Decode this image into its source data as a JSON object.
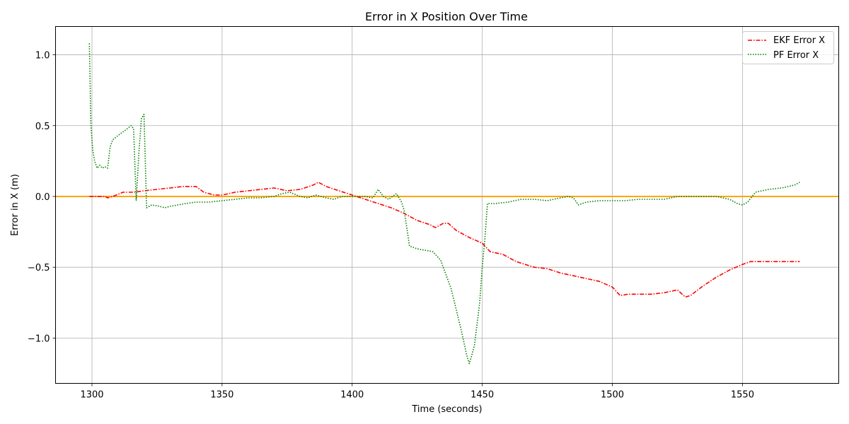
{
  "chart_data": {
    "type": "line",
    "title": "Error in X Position Over Time",
    "xlabel": "Time (seconds)",
    "ylabel": "Error in X (m)",
    "xlim": [
      1286,
      1587
    ],
    "ylim": [
      -1.32,
      1.2
    ],
    "xticks": [
      1300,
      1350,
      1400,
      1450,
      1500,
      1550
    ],
    "xtick_labels": [
      "1300",
      "1350",
      "1400",
      "1450",
      "1500",
      "1550"
    ],
    "yticks": [
      -1.0,
      -0.5,
      0.0,
      0.5,
      1.0
    ],
    "ytick_labels": [
      "−1.0",
      "−0.5",
      "0.0",
      "0.5",
      "1.0"
    ],
    "grid": true,
    "legend_position": "top-right",
    "reference_line": {
      "y": 0.0,
      "color": "#ffa500"
    },
    "series": [
      {
        "name": "EKF Error X",
        "color": "#ff0000",
        "style": "dashdot",
        "x": [
          1299,
          1302,
          1305,
          1306,
          1308,
          1312,
          1316,
          1320,
          1325,
          1330,
          1335,
          1340,
          1343,
          1347,
          1350,
          1355,
          1360,
          1365,
          1370,
          1375,
          1380,
          1385,
          1387,
          1390,
          1395,
          1400,
          1405,
          1410,
          1415,
          1420,
          1425,
          1430,
          1432,
          1435,
          1437,
          1440,
          1445,
          1450,
          1453,
          1458,
          1463,
          1470,
          1475,
          1480,
          1485,
          1490,
          1495,
          1500,
          1503,
          1506,
          1510,
          1515,
          1520,
          1525,
          1528,
          1530,
          1535,
          1540,
          1545,
          1550,
          1553,
          1560,
          1565,
          1572
        ],
        "y": [
          0.0,
          0.0,
          0.0,
          -0.01,
          0.0,
          0.03,
          0.03,
          0.04,
          0.05,
          0.06,
          0.07,
          0.07,
          0.03,
          0.01,
          0.01,
          0.03,
          0.04,
          0.05,
          0.06,
          0.04,
          0.05,
          0.08,
          0.1,
          0.07,
          0.04,
          0.01,
          -0.02,
          -0.05,
          -0.08,
          -0.12,
          -0.17,
          -0.2,
          -0.22,
          -0.19,
          -0.19,
          -0.24,
          -0.29,
          -0.33,
          -0.39,
          -0.41,
          -0.46,
          -0.5,
          -0.51,
          -0.54,
          -0.56,
          -0.58,
          -0.6,
          -0.64,
          -0.7,
          -0.69,
          -0.69,
          -0.69,
          -0.68,
          -0.66,
          -0.71,
          -0.7,
          -0.63,
          -0.57,
          -0.52,
          -0.48,
          -0.46,
          -0.46,
          -0.46,
          -0.46
        ]
      },
      {
        "name": "PF Error X",
        "color": "#008000",
        "style": "dotted",
        "x": [
          1299,
          1299.6,
          1300.3,
          1301,
          1302,
          1303,
          1304,
          1305,
          1306,
          1307,
          1308,
          1310,
          1313,
          1315,
          1316,
          1317,
          1318,
          1319,
          1320,
          1321,
          1323,
          1326,
          1328,
          1330,
          1333,
          1336,
          1340,
          1345,
          1350,
          1355,
          1360,
          1365,
          1370,
          1373,
          1376,
          1380,
          1383,
          1386,
          1390,
          1393,
          1396,
          1400,
          1405,
          1408,
          1410,
          1412,
          1414,
          1417,
          1419,
          1420,
          1421,
          1422,
          1425,
          1428,
          1431,
          1434,
          1436,
          1438,
          1440,
          1442,
          1444,
          1445,
          1446,
          1447,
          1448,
          1449,
          1450,
          1451,
          1452,
          1455,
          1460,
          1465,
          1470,
          1475,
          1480,
          1483,
          1485,
          1487,
          1490,
          1495,
          1500,
          1505,
          1510,
          1515,
          1520,
          1525,
          1530,
          1535,
          1540,
          1545,
          1548,
          1550,
          1552,
          1555,
          1560,
          1565,
          1570,
          1572
        ],
        "y": [
          1.08,
          0.5,
          0.33,
          0.25,
          0.2,
          0.22,
          0.2,
          0.21,
          0.2,
          0.35,
          0.4,
          0.43,
          0.47,
          0.5,
          0.48,
          -0.03,
          0.3,
          0.55,
          0.58,
          -0.08,
          -0.06,
          -0.07,
          -0.08,
          -0.07,
          -0.06,
          -0.05,
          -0.04,
          -0.04,
          -0.03,
          -0.02,
          -0.01,
          -0.01,
          0.0,
          0.02,
          0.03,
          0.0,
          -0.01,
          0.01,
          -0.01,
          -0.02,
          0.0,
          0.0,
          0.0,
          -0.01,
          0.05,
          0.0,
          -0.02,
          0.02,
          -0.04,
          -0.1,
          -0.22,
          -0.35,
          -0.37,
          -0.38,
          -0.39,
          -0.45,
          -0.55,
          -0.65,
          -0.8,
          -0.95,
          -1.12,
          -1.18,
          -1.12,
          -1.05,
          -0.9,
          -0.75,
          -0.5,
          -0.3,
          -0.05,
          -0.05,
          -0.04,
          -0.02,
          -0.02,
          -0.03,
          -0.01,
          0.0,
          -0.01,
          -0.06,
          -0.04,
          -0.03,
          -0.03,
          -0.03,
          -0.02,
          -0.02,
          -0.02,
          0.0,
          0.0,
          0.0,
          0.0,
          -0.02,
          -0.05,
          -0.06,
          -0.04,
          0.03,
          0.05,
          0.06,
          0.08,
          0.1
        ]
      }
    ]
  }
}
